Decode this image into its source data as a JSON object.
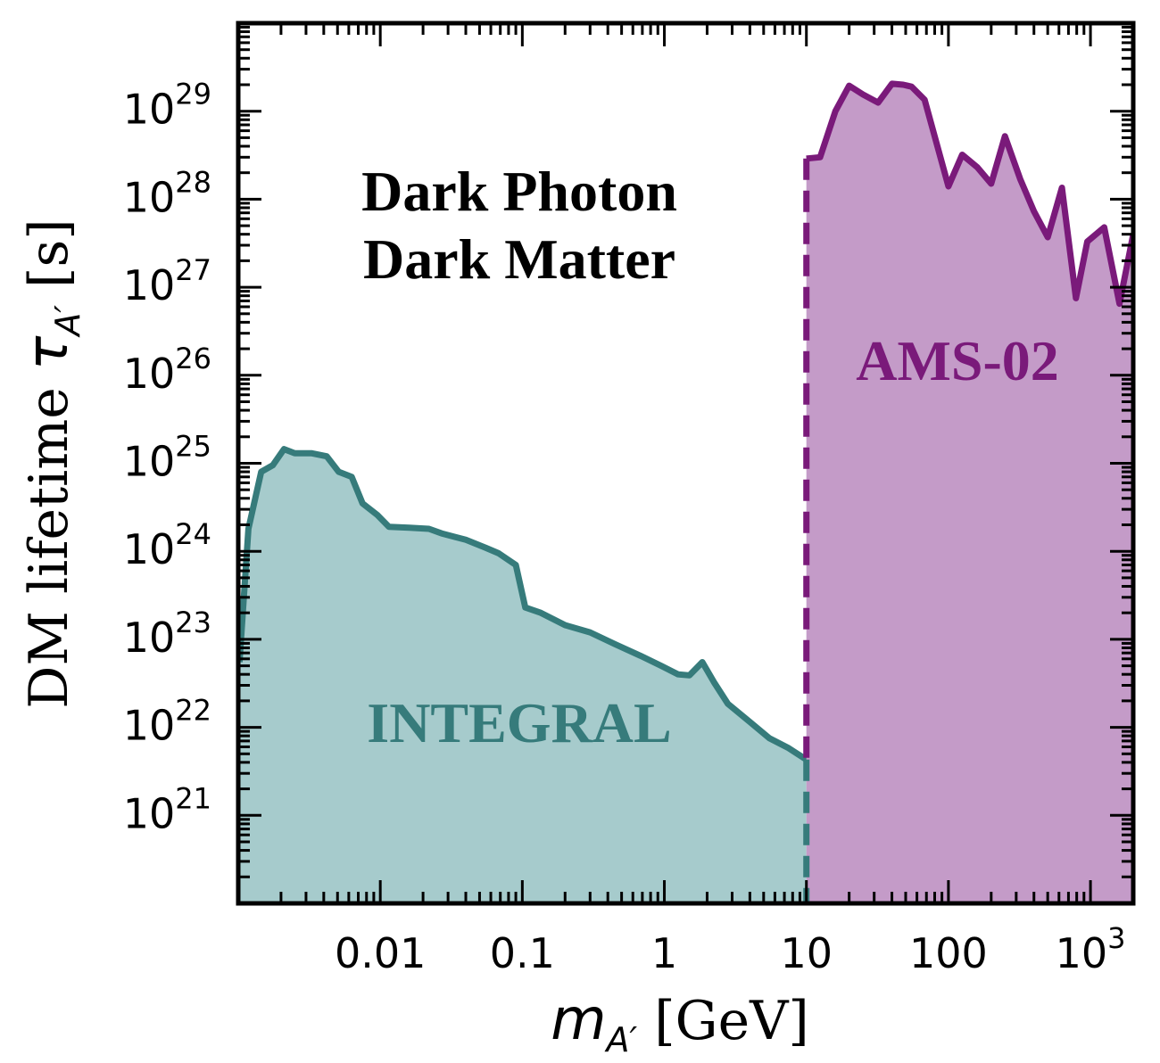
{
  "chart_data": {
    "type": "area",
    "xscale": "log",
    "yscale": "log",
    "xlim": [
      0.001,
      2000
    ],
    "ylim": [
      1e+20,
      1e+30
    ],
    "xlabel": {
      "var": "m",
      "sub": "A′",
      "unit": " [GeV]"
    },
    "ylabel": {
      "prefix": "DM lifetime ",
      "var": "τ",
      "sub": "A′",
      "unit": " [s]"
    },
    "xticks": [
      {
        "value": 0.01,
        "label": "0.01"
      },
      {
        "value": 0.1,
        "label": "0.1"
      },
      {
        "value": 1,
        "label": "1"
      },
      {
        "value": 10,
        "label": "10"
      },
      {
        "value": 100,
        "label": "100"
      },
      {
        "value": 1000,
        "label": "10",
        "exp": "3"
      }
    ],
    "yticks": [
      {
        "value": 1e+21,
        "base": "10",
        "exp": "21"
      },
      {
        "value": 1e+22,
        "base": "10",
        "exp": "22"
      },
      {
        "value": 1e+23,
        "base": "10",
        "exp": "23"
      },
      {
        "value": 1e+24,
        "base": "10",
        "exp": "24"
      },
      {
        "value": 1e+25,
        "base": "10",
        "exp": "25"
      },
      {
        "value": 1e+26,
        "base": "10",
        "exp": "26"
      },
      {
        "value": 1e+27,
        "base": "10",
        "exp": "27"
      },
      {
        "value": 1e+28,
        "base": "10",
        "exp": "28"
      },
      {
        "value": 1e+29,
        "base": "10",
        "exp": "29"
      }
    ],
    "annotation": [
      "Dark Photon",
      "Dark Matter"
    ],
    "series": [
      {
        "name": "INTEGRAL",
        "color": "#367b7b",
        "fill": "#a6cbcc",
        "points": [
          [
            0.00102,
            5.5e+22
          ],
          [
            0.00118,
            1.8e+24
          ],
          [
            0.00145,
            8e+24
          ],
          [
            0.00175,
            9.5e+24
          ],
          [
            0.0021,
            1.45e+25
          ],
          [
            0.0025,
            1.3e+25
          ],
          [
            0.0033,
            1.3e+25
          ],
          [
            0.0042,
            1.2e+25
          ],
          [
            0.0051,
            8e+24
          ],
          [
            0.0063,
            7e+24
          ],
          [
            0.0075,
            3.5e+24
          ],
          [
            0.0095,
            2.6e+24
          ],
          [
            0.0115,
            1.9e+24
          ],
          [
            0.016,
            1.85e+24
          ],
          [
            0.022,
            1.8e+24
          ],
          [
            0.027,
            1.6e+24
          ],
          [
            0.04,
            1.35e+24
          ],
          [
            0.055,
            1.1e+24
          ],
          [
            0.068,
            9.5e+23
          ],
          [
            0.09,
            7e+23
          ],
          [
            0.105,
            2.3e+23
          ],
          [
            0.135,
            2e+23
          ],
          [
            0.2,
            1.45e+23
          ],
          [
            0.3,
            1.2e+23
          ],
          [
            0.45,
            8.8e+22
          ],
          [
            0.68,
            6.5e+22
          ],
          [
            0.95,
            5e+22
          ],
          [
            1.25,
            4e+22
          ],
          [
            1.5,
            3.9e+22
          ],
          [
            1.85,
            5.5e+22
          ],
          [
            2.25,
            3.2e+22
          ],
          [
            2.8,
            1.85e+22
          ],
          [
            4,
            1.15e+22
          ],
          [
            5.5,
            7.5e+21
          ],
          [
            7.5,
            5.8e+21
          ],
          [
            10,
            4.3e+21
          ]
        ]
      },
      {
        "name": "AMS-02",
        "color": "#7a1a7a",
        "fill": "#c49bc8",
        "points": [
          [
            10,
            2.9e+28
          ],
          [
            12.5,
            3e+28
          ],
          [
            16,
            1e+29
          ],
          [
            20,
            1.95e+29
          ],
          [
            25,
            1.55e+29
          ],
          [
            32,
            1.25e+29
          ],
          [
            40,
            2.05e+29
          ],
          [
            48,
            2e+29
          ],
          [
            55,
            1.9e+29
          ],
          [
            68,
            1.35e+29
          ],
          [
            100,
            1.4e+28
          ],
          [
            125,
            3.2e+28
          ],
          [
            160,
            2.3e+28
          ],
          [
            200,
            1.5e+28
          ],
          [
            250,
            5.2e+28
          ],
          [
            320,
            1.7e+28
          ],
          [
            400,
            7.3e+27
          ],
          [
            500,
            3.7e+27
          ],
          [
            630,
            1.35e+28
          ],
          [
            790,
            7.5e+26
          ],
          [
            950,
            3.3e+27
          ],
          [
            1250,
            4.8e+27
          ],
          [
            1600,
            6.5e+26
          ],
          [
            2000,
            4e+27
          ]
        ]
      }
    ],
    "divider": {
      "x": 10,
      "style": "dashed"
    }
  }
}
